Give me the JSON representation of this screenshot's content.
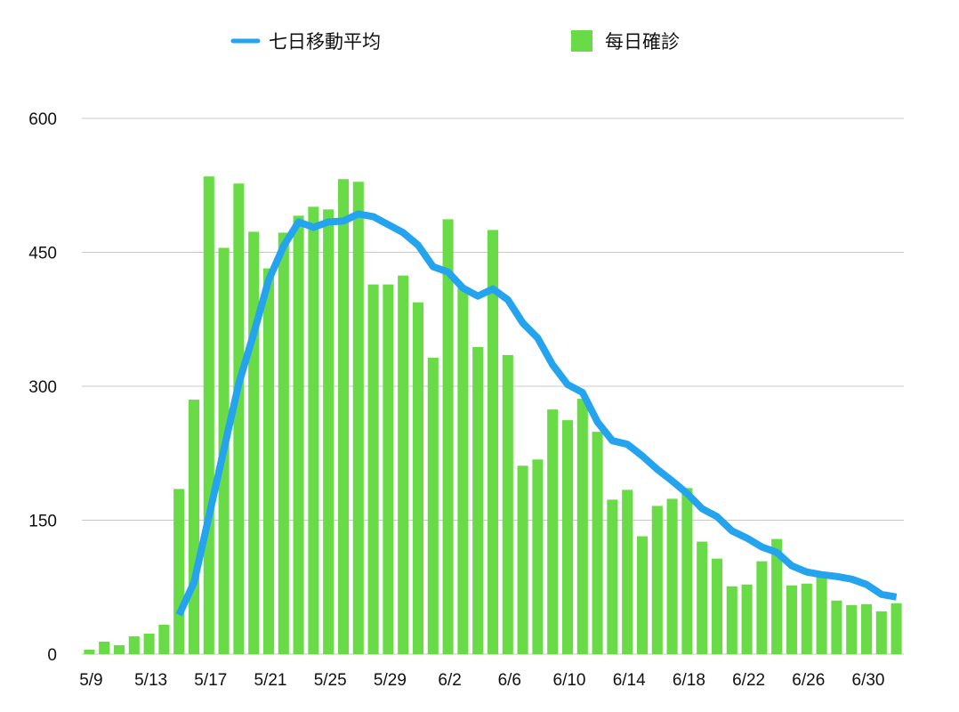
{
  "chart_data": {
    "type": "bar",
    "title": "",
    "xlabel": "",
    "ylabel": "",
    "ylim": [
      0,
      600
    ],
    "yticks": [
      0,
      150,
      300,
      450,
      600
    ],
    "grid": true,
    "legend_position": "top",
    "x_tick_labels": [
      "5/9",
      "5/13",
      "5/17",
      "5/21",
      "5/25",
      "5/29",
      "6/2",
      "6/6",
      "6/10",
      "6/14",
      "6/18",
      "6/22",
      "6/26",
      "6/30"
    ],
    "categories": [
      "5/9",
      "5/10",
      "5/11",
      "5/12",
      "5/13",
      "5/14",
      "5/15",
      "5/16",
      "5/17",
      "5/18",
      "5/19",
      "5/20",
      "5/21",
      "5/22",
      "5/23",
      "5/24",
      "5/25",
      "5/26",
      "5/27",
      "5/28",
      "5/29",
      "5/30",
      "5/31",
      "6/1",
      "6/2",
      "6/3",
      "6/4",
      "6/5",
      "6/6",
      "6/7",
      "6/8",
      "6/9",
      "6/10",
      "6/11",
      "6/12",
      "6/13",
      "6/14",
      "6/15",
      "6/16",
      "6/17",
      "6/18",
      "6/19",
      "6/20",
      "6/21",
      "6/22",
      "6/23",
      "6/24",
      "6/25",
      "6/26",
      "6/27",
      "6/28",
      "6/29",
      "6/30",
      "7/1",
      "7/2"
    ],
    "series": [
      {
        "name": "每日確診",
        "kind": "bar",
        "color": "#69db46",
        "values": [
          5,
          14,
          10,
          20,
          23,
          33,
          185,
          285,
          535,
          455,
          527,
          473,
          432,
          472,
          491,
          501,
          498,
          532,
          529,
          414,
          414,
          424,
          394,
          332,
          487,
          410,
          344,
          475,
          335,
          211,
          218,
          274,
          262,
          286,
          249,
          173,
          184,
          132,
          166,
          174,
          186,
          126,
          107,
          76,
          78,
          104,
          129,
          77,
          79,
          87,
          60,
          55,
          56,
          48,
          57
        ]
      },
      {
        "name": "七日移動平均",
        "kind": "line",
        "color": "#24a3ef",
        "values": [
          null,
          null,
          null,
          null,
          null,
          null,
          44,
          80,
          154,
          229,
          303,
          359,
          419,
          457,
          484,
          478,
          484,
          485,
          493,
          490,
          481,
          472,
          458,
          434,
          428,
          410,
          401,
          409,
          397,
          371,
          354,
          324,
          302,
          293,
          260,
          239,
          235,
          222,
          207,
          194,
          180,
          163,
          154,
          138,
          130,
          120,
          114,
          99,
          92,
          89,
          87,
          84,
          78,
          67,
          64
        ]
      }
    ]
  }
}
